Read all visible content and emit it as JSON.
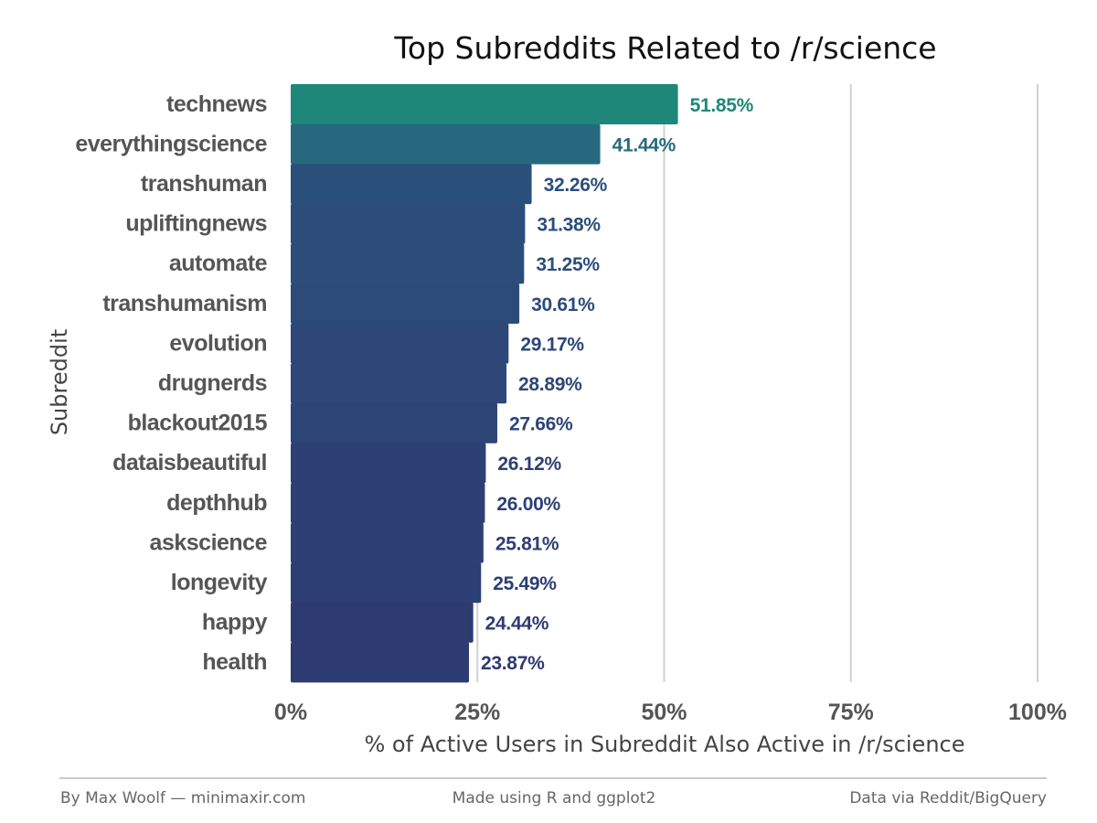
{
  "chart_data": {
    "type": "bar",
    "orientation": "horizontal",
    "title": "Top Subreddits Related to /r/science",
    "xlabel": "% of Active Users in Subreddit Also Active in /r/science",
    "ylabel": "Subreddit",
    "xlim": [
      0,
      100
    ],
    "x_ticks": [
      "0%",
      "25%",
      "50%",
      "75%",
      "100%"
    ],
    "x_tick_values": [
      0,
      25,
      50,
      75,
      100
    ],
    "grid": "vertical major",
    "legend": "none",
    "categories": [
      "technews",
      "everythingscience",
      "transhuman",
      "upliftingnews",
      "automate",
      "transhumanism",
      "evolution",
      "drugnerds",
      "blackout2015",
      "dataisbeautiful",
      "depthhub",
      "askscience",
      "longevity",
      "happy",
      "health"
    ],
    "values": [
      51.85,
      41.44,
      32.26,
      31.38,
      31.25,
      30.61,
      29.17,
      28.89,
      27.66,
      26.12,
      26.0,
      25.81,
      25.49,
      24.44,
      23.87
    ],
    "value_labels": [
      "51.85%",
      "41.44%",
      "32.26%",
      "31.38%",
      "31.25%",
      "30.61%",
      "29.17%",
      "28.89%",
      "27.66%",
      "26.12%",
      "26.00%",
      "25.81%",
      "25.49%",
      "24.44%",
      "23.87%"
    ],
    "color_scale": {
      "low": "#2e3a72",
      "mid": "#2a5a80",
      "high": "#1f877a"
    }
  },
  "footer": {
    "left": "By Max Woolf — minimaxir.com",
    "center": "Made using R and ggplot2",
    "right": "Data via Reddit/BigQuery"
  }
}
